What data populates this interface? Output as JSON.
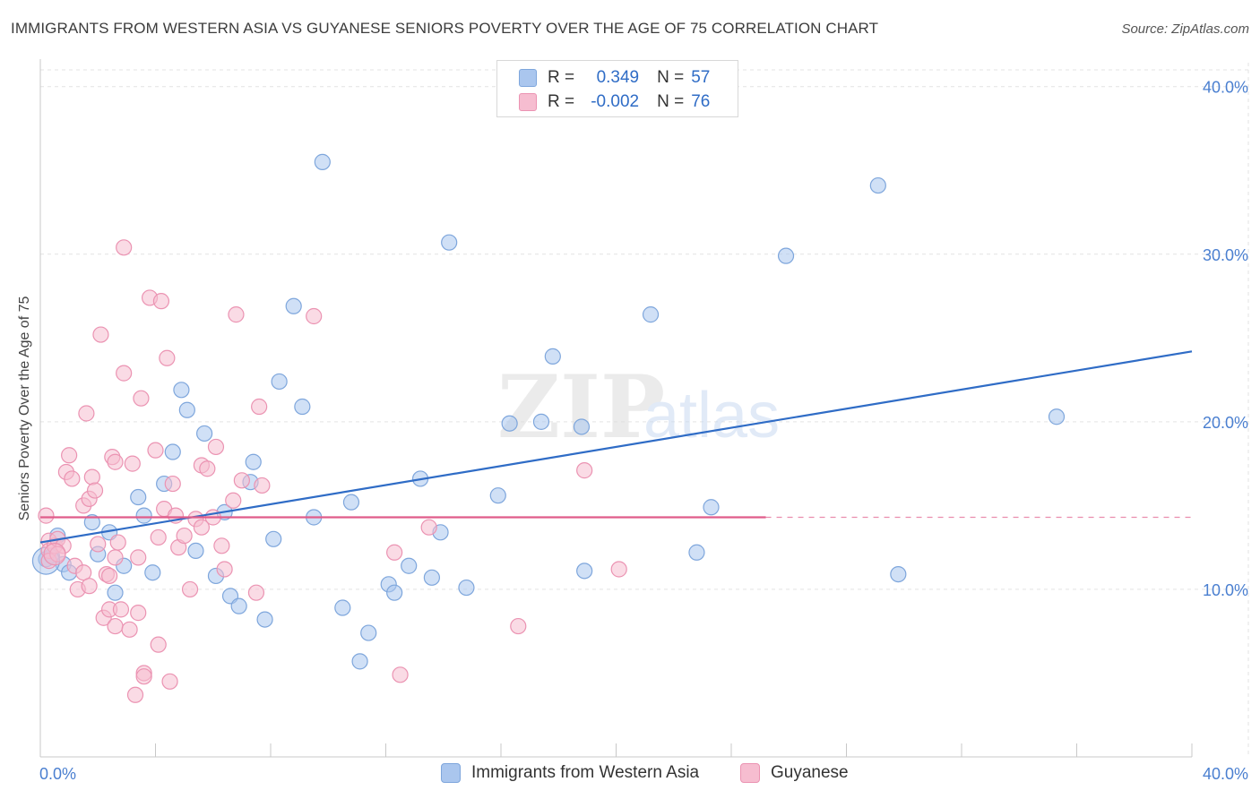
{
  "title": "IMMIGRANTS FROM WESTERN ASIA VS GUYANESE SENIORS POVERTY OVER THE AGE OF 75 CORRELATION CHART",
  "source": "Source: ZipAtlas.com",
  "watermark": {
    "zip": "ZIP",
    "atlas": "atlas"
  },
  "legend": {
    "r_label": "R =",
    "n_label": "N =",
    "series": [
      {
        "r": "0.349",
        "n": "57"
      },
      {
        "r": "-0.002",
        "n": "76"
      }
    ]
  },
  "colors": {
    "blue_fill": "#aac6ee",
    "blue_stroke": "#7ea6dc",
    "blue_line": "#2f6cc6",
    "pink_fill": "#f6bdd0",
    "pink_stroke": "#eb93b2",
    "pink_line": "#e05c8a",
    "grid": "#e3e3e3",
    "tick_text": "#4a7fd0"
  },
  "chart_data": {
    "type": "scatter",
    "title": "IMMIGRANTS FROM WESTERN ASIA VS GUYANESE SENIORS POVERTY OVER THE AGE OF 75 CORRELATION CHART",
    "xlabel": "",
    "ylabel": "Seniors Poverty Over the Age of 75",
    "xlim": [
      0,
      40
    ],
    "ylim": [
      0,
      41
    ],
    "x_tick_labels": [
      "0.0%",
      "40.0%"
    ],
    "y_ticks": [
      10,
      20,
      30,
      40
    ],
    "y_tick_labels": [
      "10.0%",
      "20.0%",
      "30.0%",
      "40.0%"
    ],
    "legend_position": "top-center",
    "series": [
      {
        "name": "Immigrants from Western Asia",
        "color": "#7ea6dc",
        "trend": {
          "x0": 0,
          "y0": 12.8,
          "x1": 40,
          "y1": 24.2
        },
        "points": [
          [
            0.2,
            11.8
          ],
          [
            0.4,
            12.0
          ],
          [
            0.6,
            13.2
          ],
          [
            0.8,
            11.5
          ],
          [
            1.0,
            11.0
          ],
          [
            1.8,
            14.0
          ],
          [
            2.0,
            12.1
          ],
          [
            2.4,
            13.4
          ],
          [
            2.6,
            9.8
          ],
          [
            2.9,
            11.4
          ],
          [
            3.4,
            15.5
          ],
          [
            3.6,
            14.4
          ],
          [
            3.9,
            11.0
          ],
          [
            4.3,
            16.3
          ],
          [
            4.6,
            18.2
          ],
          [
            4.9,
            21.9
          ],
          [
            5.1,
            20.7
          ],
          [
            5.4,
            12.3
          ],
          [
            5.7,
            19.3
          ],
          [
            6.1,
            10.8
          ],
          [
            6.4,
            14.6
          ],
          [
            6.6,
            9.6
          ],
          [
            6.9,
            9.0
          ],
          [
            7.3,
            16.4
          ],
          [
            7.4,
            17.6
          ],
          [
            7.8,
            8.2
          ],
          [
            8.1,
            13.0
          ],
          [
            8.3,
            22.4
          ],
          [
            8.8,
            26.9
          ],
          [
            9.1,
            20.9
          ],
          [
            9.5,
            14.3
          ],
          [
            9.8,
            35.5
          ],
          [
            10.5,
            8.9
          ],
          [
            10.8,
            15.2
          ],
          [
            11.1,
            5.7
          ],
          [
            11.4,
            7.4
          ],
          [
            12.1,
            10.3
          ],
          [
            12.3,
            9.8
          ],
          [
            12.8,
            11.4
          ],
          [
            13.2,
            16.6
          ],
          [
            13.6,
            10.7
          ],
          [
            13.9,
            13.4
          ],
          [
            14.2,
            30.7
          ],
          [
            14.8,
            10.1
          ],
          [
            15.9,
            15.6
          ],
          [
            16.3,
            19.9
          ],
          [
            17.4,
            20.0
          ],
          [
            17.8,
            23.9
          ],
          [
            18.8,
            19.7
          ],
          [
            18.9,
            11.1
          ],
          [
            21.2,
            26.4
          ],
          [
            22.8,
            12.2
          ],
          [
            23.3,
            14.9
          ],
          [
            25.9,
            29.9
          ],
          [
            29.1,
            34.1
          ],
          [
            29.8,
            10.9
          ],
          [
            35.3,
            20.3
          ]
        ]
      },
      {
        "name": "Guyanese",
        "color": "#eb93b2",
        "trend": {
          "x0": 0,
          "y0": 14.3,
          "x1": 25.2,
          "y1": 14.3,
          "dashed_to_x": 40
        },
        "points": [
          [
            0.2,
            14.4
          ],
          [
            0.3,
            12.9
          ],
          [
            0.3,
            12.3
          ],
          [
            0.5,
            12.6
          ],
          [
            0.6,
            13.0
          ],
          [
            0.8,
            12.6
          ],
          [
            0.9,
            17.0
          ],
          [
            1.0,
            18.0
          ],
          [
            1.1,
            16.6
          ],
          [
            1.2,
            11.4
          ],
          [
            1.3,
            10.0
          ],
          [
            1.5,
            11.0
          ],
          [
            1.5,
            15.0
          ],
          [
            1.6,
            20.5
          ],
          [
            1.7,
            10.2
          ],
          [
            1.7,
            15.4
          ],
          [
            1.8,
            16.7
          ],
          [
            1.9,
            15.9
          ],
          [
            2.0,
            12.7
          ],
          [
            2.1,
            25.2
          ],
          [
            2.2,
            8.3
          ],
          [
            2.3,
            10.9
          ],
          [
            2.4,
            10.8
          ],
          [
            2.4,
            8.8
          ],
          [
            2.5,
            17.9
          ],
          [
            2.6,
            7.8
          ],
          [
            2.6,
            11.9
          ],
          [
            2.6,
            17.6
          ],
          [
            2.7,
            12.8
          ],
          [
            2.8,
            8.8
          ],
          [
            2.9,
            30.4
          ],
          [
            2.9,
            22.9
          ],
          [
            3.1,
            7.6
          ],
          [
            3.2,
            17.5
          ],
          [
            3.3,
            3.7
          ],
          [
            3.4,
            11.9
          ],
          [
            3.4,
            8.6
          ],
          [
            3.5,
            21.4
          ],
          [
            3.6,
            5.0
          ],
          [
            3.6,
            4.8
          ],
          [
            3.8,
            27.4
          ],
          [
            4.0,
            18.3
          ],
          [
            4.1,
            13.1
          ],
          [
            4.1,
            6.7
          ],
          [
            4.2,
            27.2
          ],
          [
            4.3,
            14.8
          ],
          [
            4.4,
            23.8
          ],
          [
            4.5,
            4.5
          ],
          [
            4.6,
            16.3
          ],
          [
            4.7,
            14.4
          ],
          [
            4.8,
            12.5
          ],
          [
            5.0,
            13.2
          ],
          [
            5.2,
            10.0
          ],
          [
            5.4,
            14.2
          ],
          [
            5.6,
            17.4
          ],
          [
            5.6,
            13.7
          ],
          [
            5.8,
            17.2
          ],
          [
            6.0,
            14.3
          ],
          [
            6.1,
            18.5
          ],
          [
            6.3,
            12.6
          ],
          [
            6.4,
            11.2
          ],
          [
            6.7,
            15.3
          ],
          [
            6.8,
            26.4
          ],
          [
            7.0,
            16.5
          ],
          [
            7.6,
            20.9
          ],
          [
            7.7,
            16.2
          ],
          [
            7.5,
            9.8
          ],
          [
            9.5,
            26.3
          ],
          [
            12.3,
            12.2
          ],
          [
            12.5,
            4.9
          ],
          [
            13.5,
            13.7
          ],
          [
            16.6,
            7.8
          ],
          [
            18.9,
            17.1
          ],
          [
            20.1,
            11.2
          ],
          [
            0.3,
            11.7
          ],
          [
            0.6,
            12.1
          ]
        ]
      }
    ]
  }
}
